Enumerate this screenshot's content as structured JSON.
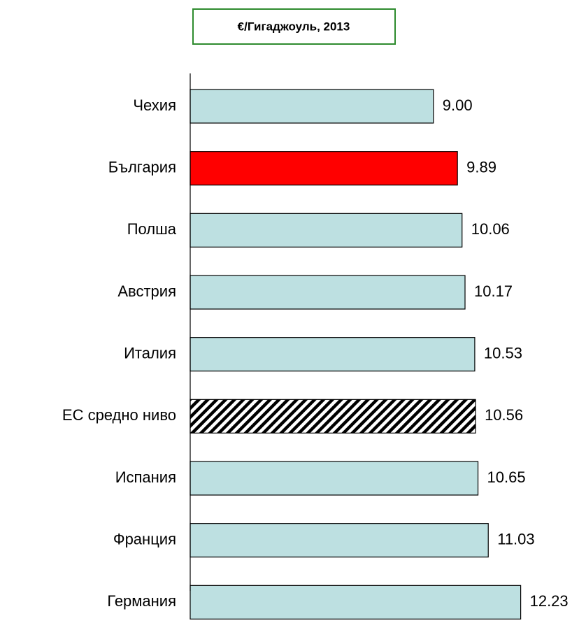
{
  "chart_data": {
    "type": "hbar",
    "title": "€/Гигаджоуль, 2013",
    "categories": [
      "Чехия",
      "България",
      "Полша",
      "Австрия",
      "Италия",
      "ЕС средно ниво",
      "Испания",
      "Франция",
      "Германия"
    ],
    "values": [
      9.0,
      9.89,
      10.06,
      10.17,
      10.53,
      10.56,
      10.65,
      11.03,
      12.23
    ],
    "value_labels": [
      "9.00",
      "9.89",
      "10.06",
      "10.17",
      "10.53",
      "10.56",
      "10.65",
      "11.03",
      "12.23"
    ],
    "colors": [
      "#bde0e1",
      "#ff0000",
      "#bde0e1",
      "#bde0e1",
      "#bde0e1",
      "hatch",
      "#bde0e1",
      "#bde0e1",
      "#bde0e1"
    ],
    "xlim": [
      0,
      14
    ]
  }
}
